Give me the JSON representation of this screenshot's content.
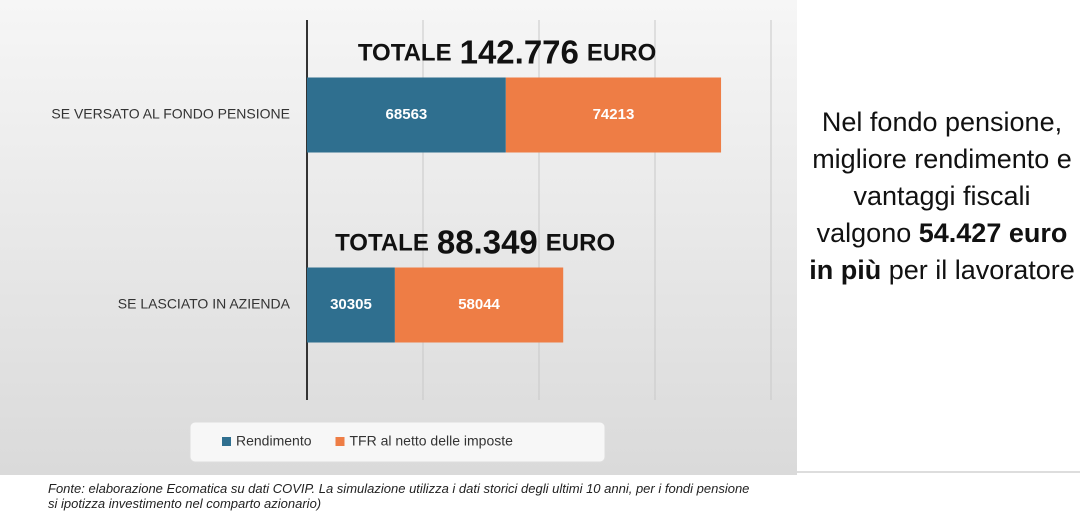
{
  "chart_data": {
    "type": "bar",
    "orientation": "horizontal",
    "stacked": true,
    "categories": [
      "SE VERSATO AL FONDO PENSIONE",
      "SE LASCIATO IN AZIENDA"
    ],
    "series": [
      {
        "name": "Rendimento",
        "color": "#2f6f8f",
        "values": [
          68563,
          30305
        ]
      },
      {
        "name": "TFR al netto delle imposte",
        "color": "#ee7d45",
        "values": [
          74213,
          58044
        ]
      }
    ],
    "xlim": [
      0,
      160000
    ],
    "xticks": [
      0,
      40000,
      80000,
      120000,
      160000
    ],
    "grid": true,
    "legend": "bottom",
    "annotations": [
      {
        "label": "TOTALE",
        "amount": "142.776",
        "unit": "EURO"
      },
      {
        "label": "TOTALE",
        "amount": "88.349",
        "unit": "EURO"
      }
    ]
  },
  "side_note": {
    "parts": [
      "Nel fondo pensione, migliore rendimento e vantaggi fiscali valgono ",
      "54.427 euro in più",
      " per il lavoratore"
    ]
  },
  "source": [
    "Fonte: elaborazione Ecomatica su dati COVIP. La simulazione utilizza i dati storici degli ultimi 10 anni, per i fondi pensione",
    "si ipotizza investimento nel comparto azionario)"
  ]
}
